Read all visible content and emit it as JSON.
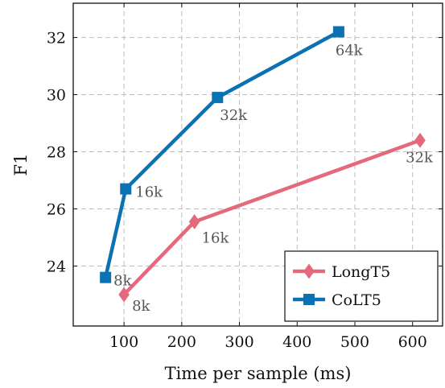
{
  "chart_data": {
    "type": "line",
    "xlabel": "Time per sample (ms)",
    "ylabel": "F1",
    "xlim": [
      12,
      652
    ],
    "ylim": [
      21.9,
      33.2
    ],
    "xticks": [
      100,
      200,
      300,
      400,
      500,
      600
    ],
    "yticks": [
      24,
      26,
      28,
      30,
      32
    ],
    "grid": true,
    "legend_position": "bottom-right",
    "series": [
      {
        "name": "LongT5",
        "color": "#e5697d",
        "marker": "diamond",
        "points": [
          {
            "x": 100,
            "y": 23.0,
            "label": "8k"
          },
          {
            "x": 222,
            "y": 25.55,
            "label": "16k"
          },
          {
            "x": 613,
            "y": 28.4,
            "label": "32k"
          }
        ]
      },
      {
        "name": "CoLT5",
        "color": "#0a72b2",
        "marker": "square",
        "points": [
          {
            "x": 68,
            "y": 23.6,
            "label": "8k"
          },
          {
            "x": 103,
            "y": 26.7,
            "label": "16k"
          },
          {
            "x": 262,
            "y": 29.9,
            "label": "32k"
          },
          {
            "x": 472,
            "y": 32.2,
            "label": "64k"
          }
        ]
      }
    ]
  }
}
